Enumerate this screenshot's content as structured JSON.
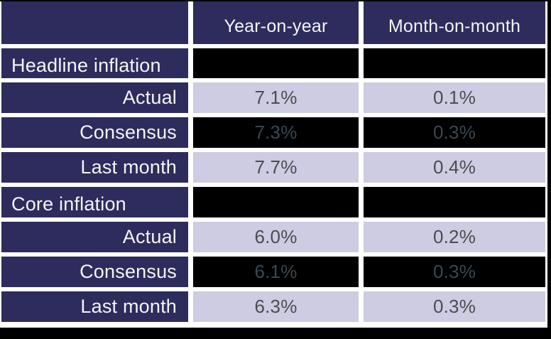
{
  "chart_data": {
    "type": "table",
    "columns": [
      "",
      "Year-on-year",
      "Month-on-month"
    ],
    "rows": [
      {
        "label": "Headline inflation",
        "row_type": "section",
        "yoy": "",
        "mom": ""
      },
      {
        "label": "Actual",
        "row_type": "data",
        "yoy": "7.1%",
        "mom": "0.1%"
      },
      {
        "label": "Consensus",
        "row_type": "consensus",
        "yoy": "7.3%",
        "mom": "0.3%"
      },
      {
        "label": "Last month",
        "row_type": "data",
        "yoy": "7.7%",
        "mom": "0.4%"
      },
      {
        "label": "Core inflation",
        "row_type": "section",
        "yoy": "",
        "mom": ""
      },
      {
        "label": "Actual",
        "row_type": "data",
        "yoy": "6.0%",
        "mom": "0.2%"
      },
      {
        "label": "Consensus",
        "row_type": "consensus",
        "yoy": "6.1%",
        "mom": "0.3%"
      },
      {
        "label": "Last month",
        "row_type": "data",
        "yoy": "6.3%",
        "mom": "0.3%"
      }
    ],
    "layout_hints": {
      "section_value_cells": "solid black, no visible text",
      "consensus_value_cells": "black background with faint dark-slate text",
      "label_column_alignment": "section labels left, sub labels right",
      "value_alignment": "center"
    }
  },
  "colors": {
    "background": "#000000",
    "cell_navy": "#2e2c5c",
    "cell_lavender": "#cdcce2",
    "cell_black": "#000000",
    "header_text": "#f4f4f6",
    "value_text": "#4c4c50",
    "faint_value_text": "#3a4750",
    "grid_gap_white": "#ffffff"
  }
}
